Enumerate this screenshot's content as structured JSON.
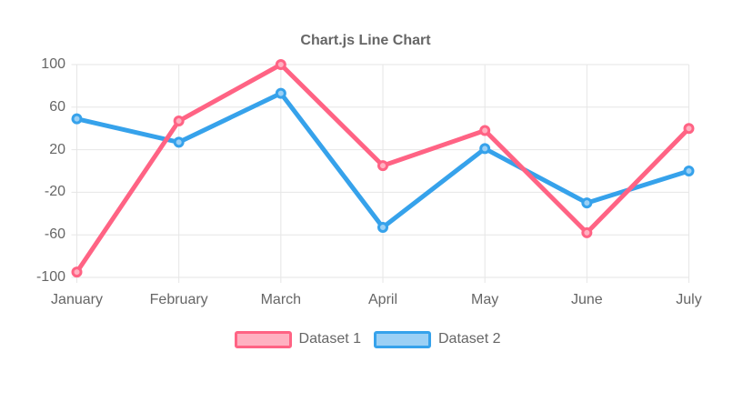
{
  "chart_data": {
    "type": "line",
    "title": "Chart.js Line Chart",
    "categories": [
      "January",
      "February",
      "March",
      "April",
      "May",
      "June",
      "July"
    ],
    "series": [
      {
        "name": "Dataset 1",
        "color": "#ff6384",
        "point_fill": "#ffb1c1",
        "values": [
          -95,
          47,
          100,
          5,
          38,
          -58,
          40
        ]
      },
      {
        "name": "Dataset 2",
        "color": "#36a2eb",
        "point_fill": "#9bd0f5",
        "values": [
          49,
          27,
          73,
          -53,
          21,
          -30,
          0
        ]
      }
    ],
    "xlabel": "",
    "ylabel": "",
    "ylim": [
      -100,
      100
    ],
    "yticks": [
      -100,
      -60,
      -20,
      20,
      60,
      100
    ],
    "grid": true,
    "legend_position": "bottom",
    "colors": {
      "grid": "#e6e6e6",
      "axis_text": "#666666",
      "title_text": "#666666",
      "background": "#ffffff"
    }
  }
}
